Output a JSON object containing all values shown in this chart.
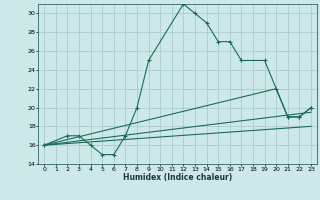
{
  "xlabel": "Humidex (Indice chaleur)",
  "bg_color": "#cce8e8",
  "grid_color": "#aacccc",
  "line_color": "#1a6b5a",
  "xlim": [
    -0.5,
    23.5
  ],
  "ylim": [
    14,
    31
  ],
  "xticks": [
    0,
    1,
    2,
    3,
    4,
    5,
    6,
    7,
    8,
    9,
    10,
    11,
    12,
    13,
    14,
    15,
    16,
    17,
    18,
    19,
    20,
    21,
    22,
    23
  ],
  "yticks": [
    14,
    16,
    18,
    20,
    22,
    24,
    26,
    28,
    30
  ],
  "lines": [
    {
      "x": [
        0,
        2,
        3,
        4,
        5,
        6,
        7,
        8,
        9,
        12,
        13,
        14,
        15,
        16,
        17,
        19,
        21,
        22,
        23
      ],
      "y": [
        16,
        17,
        17,
        16,
        15,
        15,
        17,
        20,
        25,
        31,
        30,
        29,
        27,
        27,
        25,
        25,
        19,
        19,
        20
      ],
      "marker": true
    },
    {
      "x": [
        0,
        20,
        21,
        22,
        23
      ],
      "y": [
        16,
        22,
        19,
        19,
        20
      ],
      "marker": true
    },
    {
      "x": [
        0,
        23
      ],
      "y": [
        16,
        19.5
      ],
      "marker": false
    },
    {
      "x": [
        0,
        23
      ],
      "y": [
        16,
        18
      ],
      "marker": false
    }
  ]
}
